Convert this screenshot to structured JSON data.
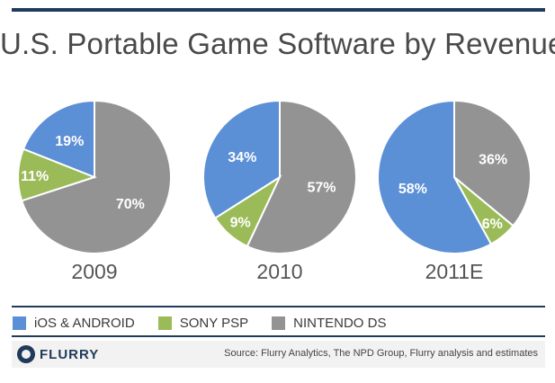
{
  "title": "U.S. Portable Game Software by Revenue",
  "colors": {
    "ios_android": "#5b8fd6",
    "sony_psp": "#9bbb59",
    "nintendo_ds": "#939393",
    "rule": "#1f3a5a"
  },
  "chart_data": [
    {
      "type": "pie",
      "label": "2009",
      "slices": [
        {
          "name": "iOS & ANDROID",
          "value": 19,
          "label": "19%"
        },
        {
          "name": "SONY PSP",
          "value": 11,
          "label": "11%"
        },
        {
          "name": "NINTENDO DS",
          "value": 70,
          "label": "70%"
        }
      ]
    },
    {
      "type": "pie",
      "label": "2010",
      "slices": [
        {
          "name": "iOS & ANDROID",
          "value": 34,
          "label": "34%"
        },
        {
          "name": "SONY PSP",
          "value": 9,
          "label": "9%"
        },
        {
          "name": "NINTENDO DS",
          "value": 57,
          "label": "57%"
        }
      ]
    },
    {
      "type": "pie",
      "label": "2011E",
      "slices": [
        {
          "name": "iOS & ANDROID",
          "value": 58,
          "label": "58%"
        },
        {
          "name": "SONY PSP",
          "value": 6,
          "label": "6%"
        },
        {
          "name": "NINTENDO DS",
          "value": 36,
          "label": "36%"
        }
      ]
    }
  ],
  "legend": [
    {
      "label": "iOS & ANDROID"
    },
    {
      "label": "SONY PSP"
    },
    {
      "label": "NINTENDO DS"
    }
  ],
  "footer": {
    "logo_text": "FLURRY",
    "logo_icon": "flurry-logo-icon",
    "source": "Source: Flurry Analytics, The NPD Group, Flurry analysis  and estimates"
  }
}
